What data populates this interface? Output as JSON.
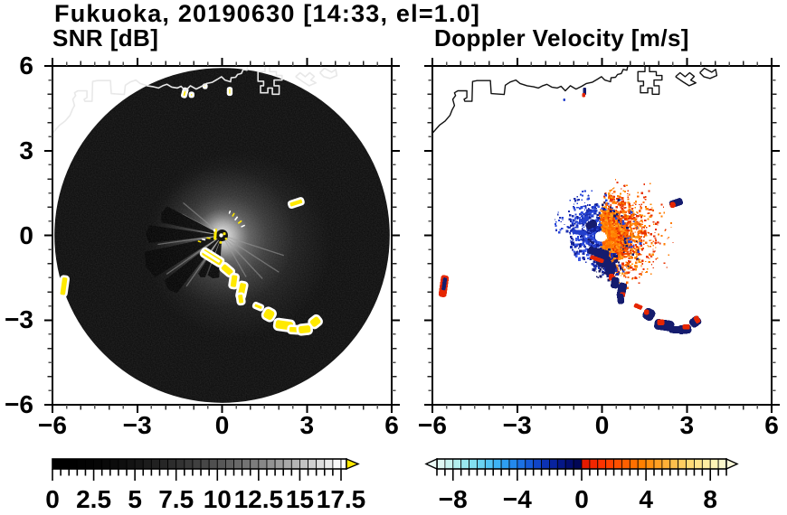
{
  "title": "Fukuoka, 20190630 [14:33, el=1.0]",
  "panels": {
    "snr": {
      "title": "SNR [dB]"
    },
    "velocity": {
      "title": "Doppler Velocity [m/s]"
    }
  },
  "axis": {
    "range": [
      -6,
      6
    ],
    "major_ticks": [
      -6,
      -3,
      0,
      3,
      6
    ],
    "x_tick_labels": [
      "−6",
      "−3",
      "0",
      "3",
      "6"
    ],
    "y_tick_labels": [
      "6",
      "3",
      "0",
      "−3",
      "−6"
    ],
    "y_tick_values": [
      6,
      3,
      0,
      -3,
      -6
    ],
    "minor_step": 0.5
  },
  "colorbars": {
    "snr": {
      "range": [
        0,
        17.5
      ],
      "tick_values": [
        0,
        2.5,
        5,
        7.5,
        10,
        12.5,
        15,
        17.5
      ],
      "tick_labels": [
        "0",
        "2.5",
        "5",
        "7.5",
        "10",
        "12.5",
        "15",
        "17.5"
      ],
      "minor_step": 0.5,
      "colormap": "black-to-white",
      "overflow_color": "#ffe900"
    },
    "velocity": {
      "range": [
        -9,
        9
      ],
      "tick_values": [
        -8,
        -4,
        0,
        4,
        8
      ],
      "tick_labels": [
        "−8",
        "−4",
        "0",
        "4",
        "8"
      ],
      "minor_step": 0.5,
      "underflow_color": "#ecfbf7",
      "overflow_color": "#fcf9d8",
      "colors_negative": [
        "#dff8f3",
        "#c9f4f0",
        "#b2efee",
        "#9ae8ee",
        "#82dff0",
        "#6ad3f2",
        "#53c4f4",
        "#3eb3f4",
        "#2e9ff2",
        "#2389ec",
        "#1b71e4",
        "#155ad8",
        "#1045c8",
        "#0c32b4",
        "#08239e",
        "#051786",
        "#030d6e",
        "#020756"
      ],
      "colors_positive": [
        "#e61a00",
        "#f32600",
        "#fc3300",
        "#ff4100",
        "#ff5000",
        "#ff6000",
        "#ff7000",
        "#ff8000",
        "#ff9010",
        "#ffa023",
        "#ffb037",
        "#ffc04c",
        "#ffcd60",
        "#ffda75",
        "#ffe48b",
        "#ffeda1",
        "#fff4b6",
        "#fdf8cb"
      ]
    }
  },
  "colors": {
    "frame": "#000000",
    "coastline_snr": "#e8e8e8",
    "coastline_vel": "#111111",
    "snr_echo": "#ffe900",
    "navy": "#151c6e",
    "red": "#e62600",
    "blue": "#2440cc",
    "scan_bg": "#0a0a0a"
  },
  "coastline": {
    "main": [
      [
        -6.0,
        3.62
      ],
      [
        -5.75,
        3.9
      ],
      [
        -5.55,
        4.05
      ],
      [
        -5.38,
        4.25
      ],
      [
        -5.3,
        4.45
      ],
      [
        -5.22,
        4.6
      ],
      [
        -5.28,
        4.82
      ],
      [
        -5.18,
        4.95
      ],
      [
        -5.22,
        5.05
      ],
      [
        -5.1,
        5.12
      ],
      [
        -4.78,
        5.12
      ],
      [
        -4.78,
        4.88
      ],
      [
        -4.88,
        4.82
      ],
      [
        -4.85,
        4.75
      ],
      [
        -4.6,
        4.75
      ],
      [
        -4.58,
        5.45
      ],
      [
        -4.42,
        5.48
      ],
      [
        -3.95,
        5.48
      ],
      [
        -3.92,
        5.02
      ],
      [
        -3.46,
        4.99
      ],
      [
        -3.42,
        5.32
      ],
      [
        -3.25,
        5.43
      ],
      [
        -3.05,
        5.5
      ],
      [
        -2.9,
        5.38
      ],
      [
        -2.65,
        5.3
      ],
      [
        -2.42,
        5.26
      ],
      [
        -2.25,
        5.22
      ],
      [
        -2.1,
        5.3
      ],
      [
        -1.95,
        5.35
      ],
      [
        -1.78,
        5.25
      ],
      [
        -1.58,
        5.22
      ],
      [
        -1.45,
        5.28
      ],
      [
        -1.3,
        5.12
      ],
      [
        -1.12,
        5.3
      ],
      [
        -0.92,
        5.18
      ],
      [
        -0.72,
        5.28
      ],
      [
        -0.55,
        5.38
      ],
      [
        -0.35,
        5.42
      ],
      [
        -0.18,
        5.52
      ],
      [
        -0.02,
        5.62
      ],
      [
        0.1,
        5.5
      ],
      [
        0.3,
        5.44
      ],
      [
        0.32,
        5.58
      ],
      [
        0.48,
        5.6
      ],
      [
        0.55,
        5.7
      ],
      [
        0.68,
        5.73
      ],
      [
        0.75,
        5.88
      ],
      [
        0.88,
        5.85
      ],
      [
        0.92,
        6.05
      ]
    ],
    "ports": [
      [
        [
          1.52,
          6.05
        ],
        [
          1.52,
          5.8
        ],
        [
          1.27,
          5.8
        ],
        [
          1.27,
          5.46
        ],
        [
          1.47,
          5.46
        ],
        [
          1.47,
          5.3
        ],
        [
          1.36,
          5.3
        ],
        [
          1.36,
          5.05
        ],
        [
          1.62,
          5.05
        ],
        [
          1.62,
          5.22
        ],
        [
          1.78,
          5.22
        ],
        [
          1.78,
          5.0
        ],
        [
          2.02,
          5.0
        ],
        [
          2.02,
          5.3
        ],
        [
          1.84,
          5.3
        ],
        [
          1.84,
          5.5
        ],
        [
          2.12,
          5.5
        ],
        [
          2.12,
          5.66
        ],
        [
          1.92,
          5.66
        ],
        [
          1.92,
          5.8
        ],
        [
          1.68,
          5.8
        ],
        [
          1.68,
          6.05
        ]
      ],
      [
        [
          2.6,
          5.62
        ],
        [
          2.76,
          5.76
        ],
        [
          2.94,
          5.62
        ],
        [
          3.1,
          5.76
        ],
        [
          3.26,
          5.63
        ],
        [
          3.14,
          5.5
        ],
        [
          3.32,
          5.4
        ],
        [
          3.08,
          5.3
        ],
        [
          2.86,
          5.44
        ],
        [
          2.6,
          5.62
        ]
      ],
      [
        [
          3.46,
          5.76
        ],
        [
          3.62,
          5.92
        ],
        [
          3.88,
          5.78
        ],
        [
          4.02,
          5.88
        ],
        [
          4.06,
          5.66
        ],
        [
          3.82,
          5.56
        ],
        [
          3.6,
          5.62
        ],
        [
          3.46,
          5.76
        ]
      ]
    ]
  },
  "chart_data": [
    {
      "type": "heatmap",
      "panel": "snr",
      "title": "SNR [dB]",
      "xlim": [
        -6,
        6
      ],
      "ylim": [
        -6,
        6
      ],
      "scan": {
        "center": [
          0,
          0
        ],
        "radius": 5.93
      },
      "shadow_wedges": [
        [
          152,
          168,
          2.2
        ],
        [
          172,
          186,
          2.6
        ],
        [
          192,
          212,
          2.8
        ],
        [
          218,
          232,
          2.6
        ],
        [
          238,
          248,
          1.6
        ],
        [
          250,
          266,
          1.5
        ]
      ],
      "rays": [
        [
          -18,
          2.3
        ],
        [
          -33,
          2.4
        ],
        [
          -47,
          2.1
        ],
        [
          -60,
          1.7
        ],
        [
          140,
          1.8
        ],
        [
          152,
          1.6
        ],
        [
          188,
          2.3
        ],
        [
          215,
          2.4
        ],
        [
          235,
          2.2
        ]
      ],
      "echoes": [
        [
          -0.35,
          -0.78,
          0.85,
          0.3,
          32
        ],
        [
          0.18,
          -1.22,
          0.5,
          0.3,
          40
        ],
        [
          0.42,
          -1.62,
          0.28,
          0.5,
          8
        ],
        [
          0.7,
          -1.95,
          0.3,
          0.6,
          12
        ],
        [
          0.66,
          -2.25,
          0.24,
          0.38,
          -8
        ],
        [
          1.28,
          -2.52,
          0.34,
          0.18,
          22
        ],
        [
          1.66,
          -2.8,
          0.42,
          0.42,
          30
        ],
        [
          2.2,
          -3.18,
          0.7,
          0.38,
          8
        ],
        [
          2.56,
          -3.34,
          0.44,
          0.26,
          4
        ],
        [
          2.92,
          -3.33,
          0.5,
          0.34,
          -6
        ],
        [
          3.3,
          -3.06,
          0.42,
          0.36,
          -38
        ],
        [
          2.62,
          1.15,
          0.52,
          0.22,
          -18
        ],
        [
          -5.6,
          -1.8,
          0.26,
          0.7,
          8
        ],
        [
          -1.32,
          5.05,
          0.14,
          0.3,
          15
        ],
        [
          -1.08,
          4.98,
          0.12,
          0.14,
          0
        ],
        [
          0.27,
          5.1,
          0.12,
          0.24,
          0
        ],
        [
          -0.6,
          5.28,
          0.1,
          0.12,
          0
        ]
      ],
      "echo_marks": [
        [
          -0.38,
          -0.75,
          0.7,
          0.1,
          32,
          "#ffffff"
        ],
        [
          -0.24,
          0.04,
          0.1,
          0.4,
          4,
          "#ffe900"
        ],
        [
          -0.27,
          0.18,
          0.07,
          0.1,
          0,
          "#ffffff"
        ],
        [
          0.5,
          0.6,
          0.16,
          0.055,
          -52,
          "#ffffff"
        ],
        [
          0.63,
          0.47,
          0.16,
          0.055,
          -38,
          "#ffe900"
        ],
        [
          0.74,
          0.33,
          0.15,
          0.05,
          -24,
          "#ffffff"
        ],
        [
          0.4,
          0.73,
          0.14,
          0.05,
          -60,
          "#ffe900"
        ],
        [
          0.27,
          0.82,
          0.12,
          0.05,
          -70,
          "#ffffff"
        ],
        [
          -0.48,
          -0.1,
          0.14,
          0.05,
          8,
          "#ffe900"
        ],
        [
          -0.65,
          -0.15,
          0.13,
          0.05,
          10,
          "#ffffff"
        ],
        [
          -0.8,
          -0.22,
          0.12,
          0.05,
          14,
          "#ffe900"
        ],
        [
          0.08,
          0.06,
          0.1,
          0.1,
          0,
          "#ffe900"
        ],
        [
          0.14,
          -0.12,
          0.08,
          0.08,
          0,
          "#ffe900"
        ],
        [
          -0.05,
          -0.25,
          0.09,
          0.09,
          0,
          "#ffe900"
        ]
      ]
    },
    {
      "type": "heatmap",
      "panel": "velocity",
      "title": "Doppler Velocity [m/s]",
      "xlim": [
        -6,
        6
      ],
      "ylim": [
        -6,
        6
      ],
      "radar_hole": {
        "center": [
          -0.07,
          -0.04
        ],
        "radius_px": 5.5
      },
      "speckle_clusters": [
        {
          "name": "east-fan-core",
          "cx": -0.05,
          "cy": 0,
          "a0": -95,
          "a1": 95,
          "r0": 0.22,
          "r1": 0.95,
          "n": 650,
          "size": 2.4,
          "bias": 1.2,
          "colors": [
            "#ff6f00",
            "#ff7f00",
            "#ff5f00",
            "#ff8f0a"
          ]
        },
        {
          "name": "east-fan-mid",
          "cx": -0.05,
          "cy": 0,
          "a0": -80,
          "a1": 88,
          "r0": 0.6,
          "r1": 1.55,
          "n": 800,
          "size": 2.0,
          "bias": 1.7,
          "colors": [
            "#ff6a00",
            "#ff7c00",
            "#f04800",
            "#ff9d1e",
            "#e83200"
          ]
        },
        {
          "name": "east-fan-outer",
          "cx": -0.05,
          "cy": 0,
          "a0": -70,
          "a1": 80,
          "r0": 1.3,
          "r1": 2.1,
          "n": 260,
          "size": 1.7,
          "bias": 2.2,
          "colors": [
            "#ff6a00",
            "#e83200",
            "#ff8c00"
          ]
        },
        {
          "name": "east-far-sparse",
          "cx": -0.05,
          "cy": 0,
          "a0": -55,
          "a1": 55,
          "r0": 1.9,
          "r1": 2.6,
          "n": 60,
          "size": 1.5,
          "bias": 2.0,
          "colors": [
            "#e83200",
            "#ff7c00"
          ]
        },
        {
          "name": "west-blue-fan",
          "cx": -0.05,
          "cy": 0,
          "a0": 95,
          "a1": 268,
          "r0": 0.22,
          "r1": 1.15,
          "n": 520,
          "size": 2.1,
          "bias": 1.5,
          "colors": [
            "#2746d8",
            "#1b2fb0",
            "#3d5ae6",
            "#111f96"
          ]
        },
        {
          "name": "nw-blue-outer",
          "cx": -0.05,
          "cy": 0,
          "a0": 100,
          "a1": 175,
          "r0": 0.9,
          "r1": 1.75,
          "n": 150,
          "size": 1.8,
          "bias": 2.0,
          "colors": [
            "#2746d8",
            "#1b2fb0"
          ]
        },
        {
          "name": "mixed-navy-in-east",
          "cx": -0.05,
          "cy": 0,
          "a0": -90,
          "a1": 90,
          "r0": 0.8,
          "r1": 1.5,
          "n": 80,
          "size": 1.8,
          "bias": 1.6,
          "colors": [
            "#15196b",
            "#2746d8"
          ]
        },
        {
          "name": "south-navy-spray",
          "cx": 0.1,
          "cy": -1.0,
          "a0": 0,
          "a1": 360,
          "r0": 0,
          "r1": 0.55,
          "n": 180,
          "size": 2.2,
          "bias": 1.3,
          "colors": [
            "#15196b",
            "#1b2fb0"
          ]
        }
      ],
      "patches": [
        [
          -0.12,
          -0.6,
          0.75,
          0.28,
          14,
          "navy"
        ],
        [
          0.05,
          -0.9,
          0.5,
          0.45,
          20,
          "navy"
        ],
        [
          -0.18,
          -0.84,
          0.5,
          0.15,
          20,
          "red"
        ],
        [
          0.3,
          -1.2,
          0.34,
          0.5,
          8,
          "navy"
        ],
        [
          0.34,
          -1.48,
          0.2,
          0.24,
          0,
          "red"
        ],
        [
          0.46,
          -1.68,
          0.28,
          0.4,
          8,
          "navy"
        ],
        [
          -0.38,
          0.38,
          0.4,
          0.26,
          -28,
          "navy"
        ],
        [
          -0.8,
          0.1,
          0.5,
          0.16,
          8,
          "blue"
        ],
        [
          -0.6,
          0.55,
          0.32,
          0.18,
          -40,
          "blue"
        ],
        [
          -0.35,
          -0.25,
          0.16,
          0.07,
          35,
          "navy"
        ],
        [
          -0.45,
          -0.15,
          0.14,
          0.06,
          15,
          "navy"
        ],
        [
          -0.3,
          -0.38,
          0.14,
          0.07,
          50,
          "blue"
        ],
        [
          0.7,
          -1.95,
          0.3,
          0.55,
          12,
          "navy"
        ],
        [
          0.73,
          -2.1,
          0.18,
          0.18,
          0,
          "red"
        ],
        [
          0.66,
          -2.25,
          0.24,
          0.36,
          -8,
          "navy"
        ],
        [
          1.28,
          -2.52,
          0.3,
          0.16,
          22,
          "red"
        ],
        [
          1.66,
          -2.8,
          0.4,
          0.42,
          30,
          "navy"
        ],
        [
          1.58,
          -2.72,
          0.18,
          0.18,
          0,
          "red"
        ],
        [
          2.2,
          -3.18,
          0.7,
          0.38,
          8,
          "navy"
        ],
        [
          2.08,
          -3.08,
          0.26,
          0.22,
          0,
          "red"
        ],
        [
          2.48,
          -3.34,
          0.22,
          0.18,
          0,
          "red"
        ],
        [
          2.58,
          -3.34,
          0.42,
          0.26,
          4,
          "navy"
        ],
        [
          2.92,
          -3.33,
          0.48,
          0.32,
          -6,
          "navy"
        ],
        [
          2.98,
          -3.24,
          0.26,
          0.18,
          0,
          "red"
        ],
        [
          3.3,
          -3.06,
          0.4,
          0.34,
          -38,
          "navy"
        ],
        [
          3.36,
          -2.98,
          0.18,
          0.26,
          -30,
          "red"
        ],
        [
          2.62,
          1.15,
          0.48,
          0.26,
          -18,
          "navy"
        ],
        [
          2.5,
          1.08,
          0.2,
          0.2,
          0,
          "red"
        ],
        [
          -5.6,
          -1.8,
          0.28,
          0.78,
          8,
          "red"
        ],
        [
          -5.58,
          -1.72,
          0.14,
          0.45,
          8,
          "navy"
        ],
        [
          -0.62,
          5.1,
          0.12,
          0.26,
          0,
          "navy"
        ],
        [
          -0.65,
          4.97,
          0.12,
          0.14,
          0,
          "red"
        ],
        [
          -1.34,
          4.8,
          0.08,
          0.09,
          0,
          "blue"
        ]
      ]
    }
  ]
}
